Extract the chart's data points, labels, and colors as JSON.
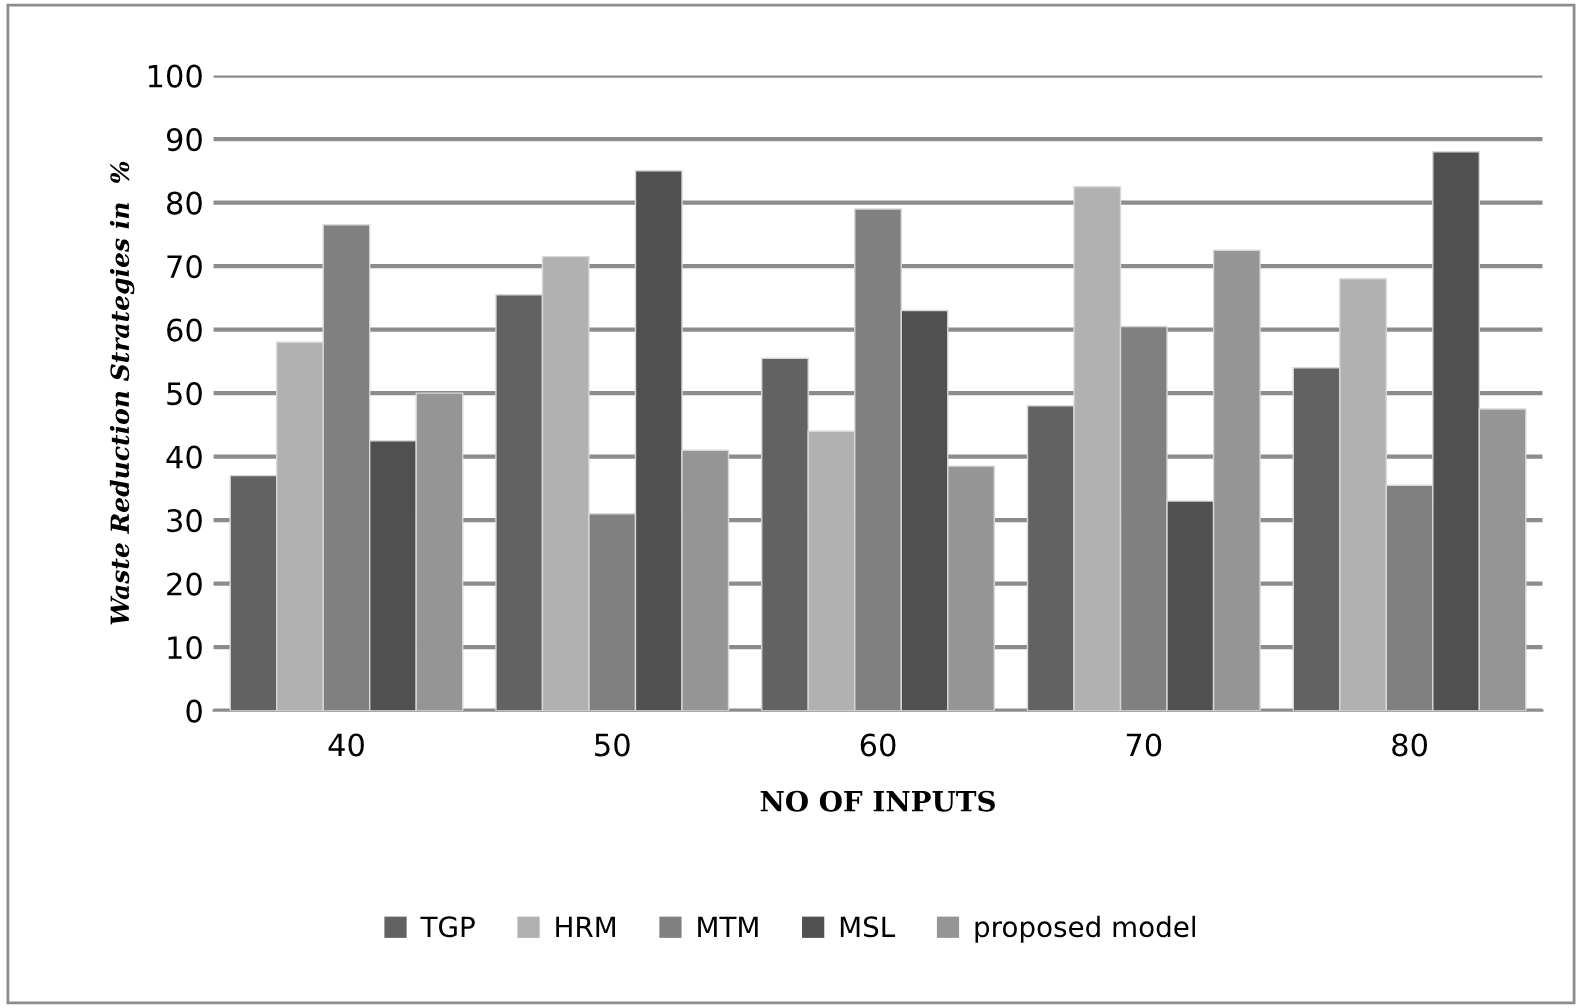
{
  "chart_data": {
    "type": "bar",
    "categories": [
      "40",
      "50",
      "60",
      "70",
      "80"
    ],
    "xlabel": "NO OF INPUTS",
    "ylabel": "Waste Reduction Strategies in  %",
    "series": [
      {
        "name": "TGP",
        "color": "#626262",
        "values": [
          37,
          65.5,
          55.5,
          48,
          54
        ]
      },
      {
        "name": "HRM",
        "color": "#b1b1b1",
        "values": [
          58,
          71.5,
          44,
          82.5,
          68
        ]
      },
      {
        "name": "MTM",
        "color": "#808080",
        "values": [
          76.5,
          31,
          79,
          60.5,
          35.5
        ]
      },
      {
        "name": "MSL",
        "color": "#505050",
        "values": [
          42.5,
          85,
          63,
          33,
          88
        ]
      },
      {
        "name": "proposed model",
        "color": "#959595",
        "values": [
          50,
          41,
          38.5,
          72.5,
          47.5
        ]
      }
    ],
    "ylim": [
      0,
      100
    ],
    "yticks": [
      0,
      10,
      20,
      30,
      40,
      50,
      60,
      70,
      80,
      90,
      100
    ],
    "grid": "y",
    "legend": "bottom"
  }
}
